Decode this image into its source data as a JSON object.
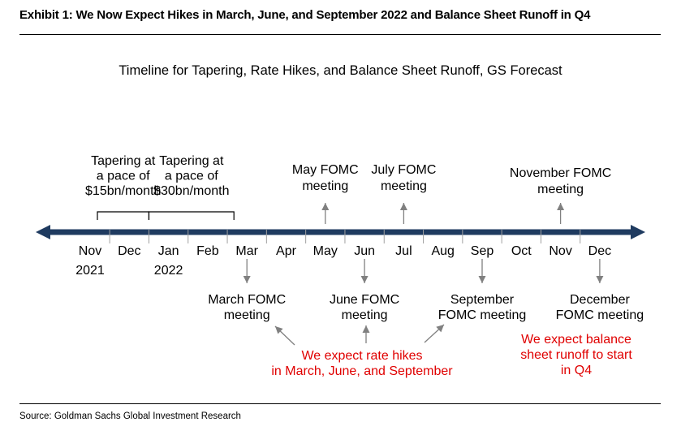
{
  "exhibit_title": "Exhibit 1: We Now Expect Hikes in March, June, and September 2022 and Balance Sheet Runoff in Q4",
  "subtitle": "Timeline for Tapering, Rate Hikes, and Balance Sheet Runoff, GS Forecast",
  "source": "Source: Goldman Sachs Global Investment Research",
  "colors": {
    "timeline": "#1f3b60",
    "arrow": "#808080",
    "red_text": "#e00000"
  },
  "months": [
    "Nov",
    "Dec",
    "Jan",
    "Feb",
    "Mar",
    "Apr",
    "May",
    "Jun",
    "Jul",
    "Aug",
    "Sep",
    "Oct",
    "Nov",
    "Dec"
  ],
  "years": [
    {
      "label": "2021",
      "month_index": 0
    },
    {
      "label": "2022",
      "month_index": 2
    }
  ],
  "tapering": [
    {
      "lines": [
        "Tapering at",
        "a pace of",
        "$15bn/month"
      ],
      "from_month": 0,
      "to_month": 2
    },
    {
      "lines": [
        "Tapering at",
        "a pace of",
        "$30bn/month"
      ],
      "from_month": 2,
      "to_month": 4
    }
  ],
  "above_events": [
    {
      "lines": [
        "May FOMC",
        "meeting"
      ],
      "month_index": 6
    },
    {
      "lines": [
        "July FOMC",
        "meeting"
      ],
      "month_index": 8
    },
    {
      "lines": [
        "November FOMC",
        "meeting"
      ],
      "month_index": 12
    }
  ],
  "below_events": [
    {
      "lines": [
        "March FOMC",
        "meeting"
      ],
      "month_index": 4
    },
    {
      "lines": [
        "June FOMC",
        "meeting"
      ],
      "month_index": 7
    },
    {
      "lines": [
        "September",
        "FOMC meeting"
      ],
      "month_index": 10
    },
    {
      "lines": [
        "December",
        "FOMC meeting"
      ],
      "month_index": 13
    }
  ],
  "hike_note": {
    "lines": [
      "We expect rate hikes",
      "in March, June, and September"
    ],
    "points_to_months": [
      4,
      7,
      10
    ]
  },
  "runoff_note": {
    "lines": [
      "We expect balance",
      "sheet runoff to start",
      "in Q4"
    ]
  }
}
